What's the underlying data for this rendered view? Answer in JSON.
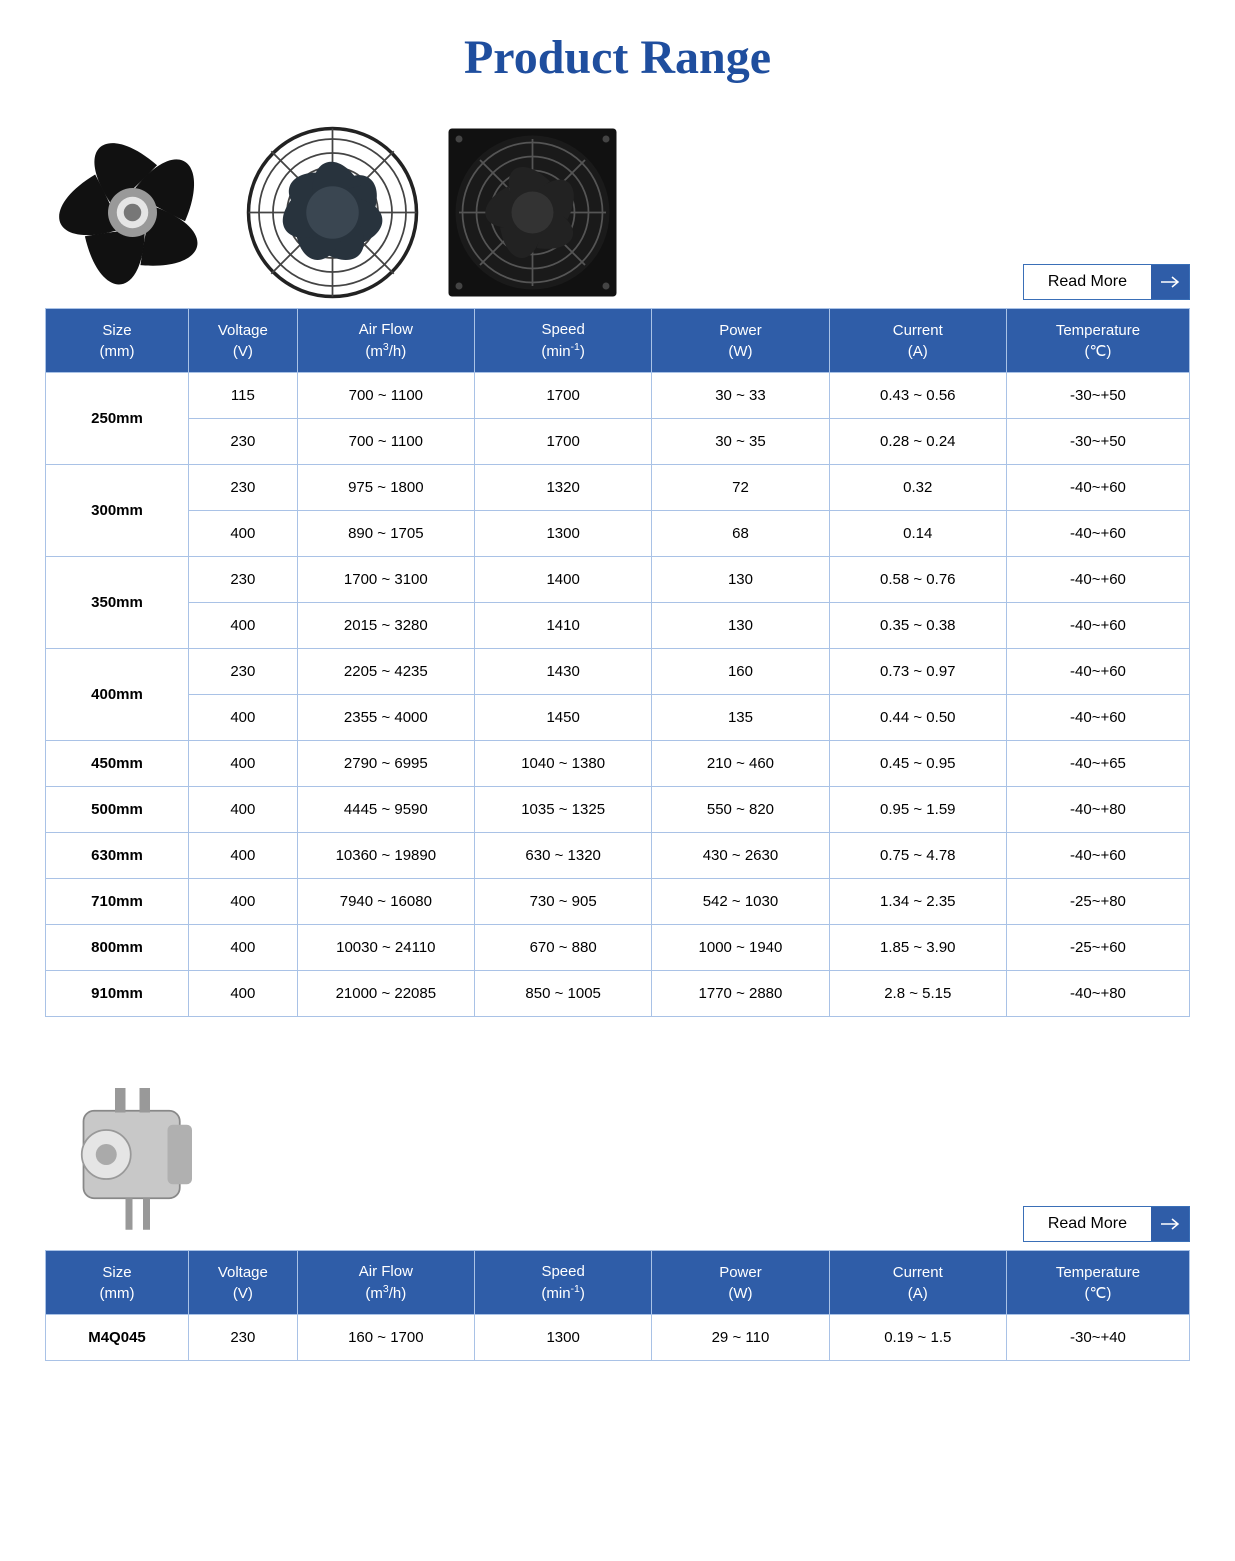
{
  "title": "Product Range",
  "readMoreLabel": "Read More",
  "colors": {
    "accent": "#1f4e9e",
    "header_bg": "#2f5da8",
    "border": "#a9c2e6",
    "text": "#000000",
    "background": "#ffffff"
  },
  "columns": [
    {
      "label": "Size",
      "unit": "(mm)"
    },
    {
      "label": "Voltage",
      "unit": "(V)"
    },
    {
      "label": "Air Flow",
      "unit_html": "(m<sup>3</sup>/h)"
    },
    {
      "label": "Speed",
      "unit_html": "(min<sup>-1</sup>)"
    },
    {
      "label": "Power",
      "unit": "(W)"
    },
    {
      "label": "Current",
      "unit": "(A)"
    },
    {
      "label": "Temperature",
      "unit": "(℃)"
    }
  ],
  "table1": {
    "rows": [
      {
        "size": "250mm",
        "voltage": "115",
        "airflow": "700 ~ 1100",
        "speed": "1700",
        "power": "30 ~ 33",
        "current": "0.43 ~ 0.56",
        "temp": "-30~+50"
      },
      {
        "size": "",
        "voltage": "230",
        "airflow": "700 ~ 1100",
        "speed": "1700",
        "power": "30 ~ 35",
        "current": "0.28 ~ 0.24",
        "temp": "-30~+50"
      },
      {
        "size": "300mm",
        "voltage": "230",
        "airflow": "975 ~ 1800",
        "speed": "1320",
        "power": "72",
        "current": "0.32",
        "temp": "-40~+60"
      },
      {
        "size": "",
        "voltage": "400",
        "airflow": "890 ~ 1705",
        "speed": "1300",
        "power": "68",
        "current": "0.14",
        "temp": "-40~+60"
      },
      {
        "size": "350mm",
        "voltage": "230",
        "airflow": "1700 ~ 3100",
        "speed": "1400",
        "power": "130",
        "current": "0.58 ~ 0.76",
        "temp": "-40~+60"
      },
      {
        "size": "",
        "voltage": "400",
        "airflow": "2015 ~ 3280",
        "speed": "1410",
        "power": "130",
        "current": "0.35 ~ 0.38",
        "temp": "-40~+60"
      },
      {
        "size": "400mm",
        "voltage": "230",
        "airflow": "2205 ~ 4235",
        "speed": "1430",
        "power": "160",
        "current": "0.73 ~ 0.97",
        "temp": "-40~+60"
      },
      {
        "size": "",
        "voltage": "400",
        "airflow": "2355 ~ 4000",
        "speed": "1450",
        "power": "135",
        "current": "0.44 ~ 0.50",
        "temp": "-40~+60"
      },
      {
        "size": "450mm",
        "voltage": "400",
        "airflow": "2790 ~ 6995",
        "speed": "1040 ~ 1380",
        "power": "210 ~ 460",
        "current": "0.45 ~ 0.95",
        "temp": "-40~+65"
      },
      {
        "size": "500mm",
        "voltage": "400",
        "airflow": "4445 ~ 9590",
        "speed": "1035 ~ 1325",
        "power": "550 ~ 820",
        "current": "0.95 ~ 1.59",
        "temp": "-40~+80"
      },
      {
        "size": "630mm",
        "voltage": "400",
        "airflow": "10360 ~ 19890",
        "speed": "630 ~ 1320",
        "power": "430 ~ 2630",
        "current": "0.75 ~ 4.78",
        "temp": "-40~+60"
      },
      {
        "size": "710mm",
        "voltage": "400",
        "airflow": "7940 ~ 16080",
        "speed": "730 ~ 905",
        "power": "542 ~ 1030",
        "current": "1.34 ~ 2.35",
        "temp": "-25~+80"
      },
      {
        "size": "800mm",
        "voltage": "400",
        "airflow": "10030 ~ 24110",
        "speed": "670 ~ 880",
        "power": "1000 ~ 1940",
        "current": "1.85 ~ 3.90",
        "temp": "-25~+60"
      },
      {
        "size": "910mm",
        "voltage": "400",
        "airflow": "21000 ~ 22085",
        "speed": "850 ~ 1005",
        "power": "1770 ~ 2880",
        "current": "2.8 ~ 5.15",
        "temp": "-40~+80"
      }
    ],
    "size_rowspans": {
      "0": 2,
      "2": 2,
      "4": 2,
      "6": 2,
      "8": 1,
      "9": 1,
      "10": 1,
      "11": 1,
      "12": 1,
      "13": 1
    }
  },
  "table2": {
    "rows": [
      {
        "size": "M4Q045",
        "voltage": "230",
        "airflow": "160 ~ 1700",
        "speed": "1300",
        "power": "29 ~ 110",
        "current": "0.19 ~ 1.5",
        "temp": "-30~+40"
      }
    ]
  }
}
